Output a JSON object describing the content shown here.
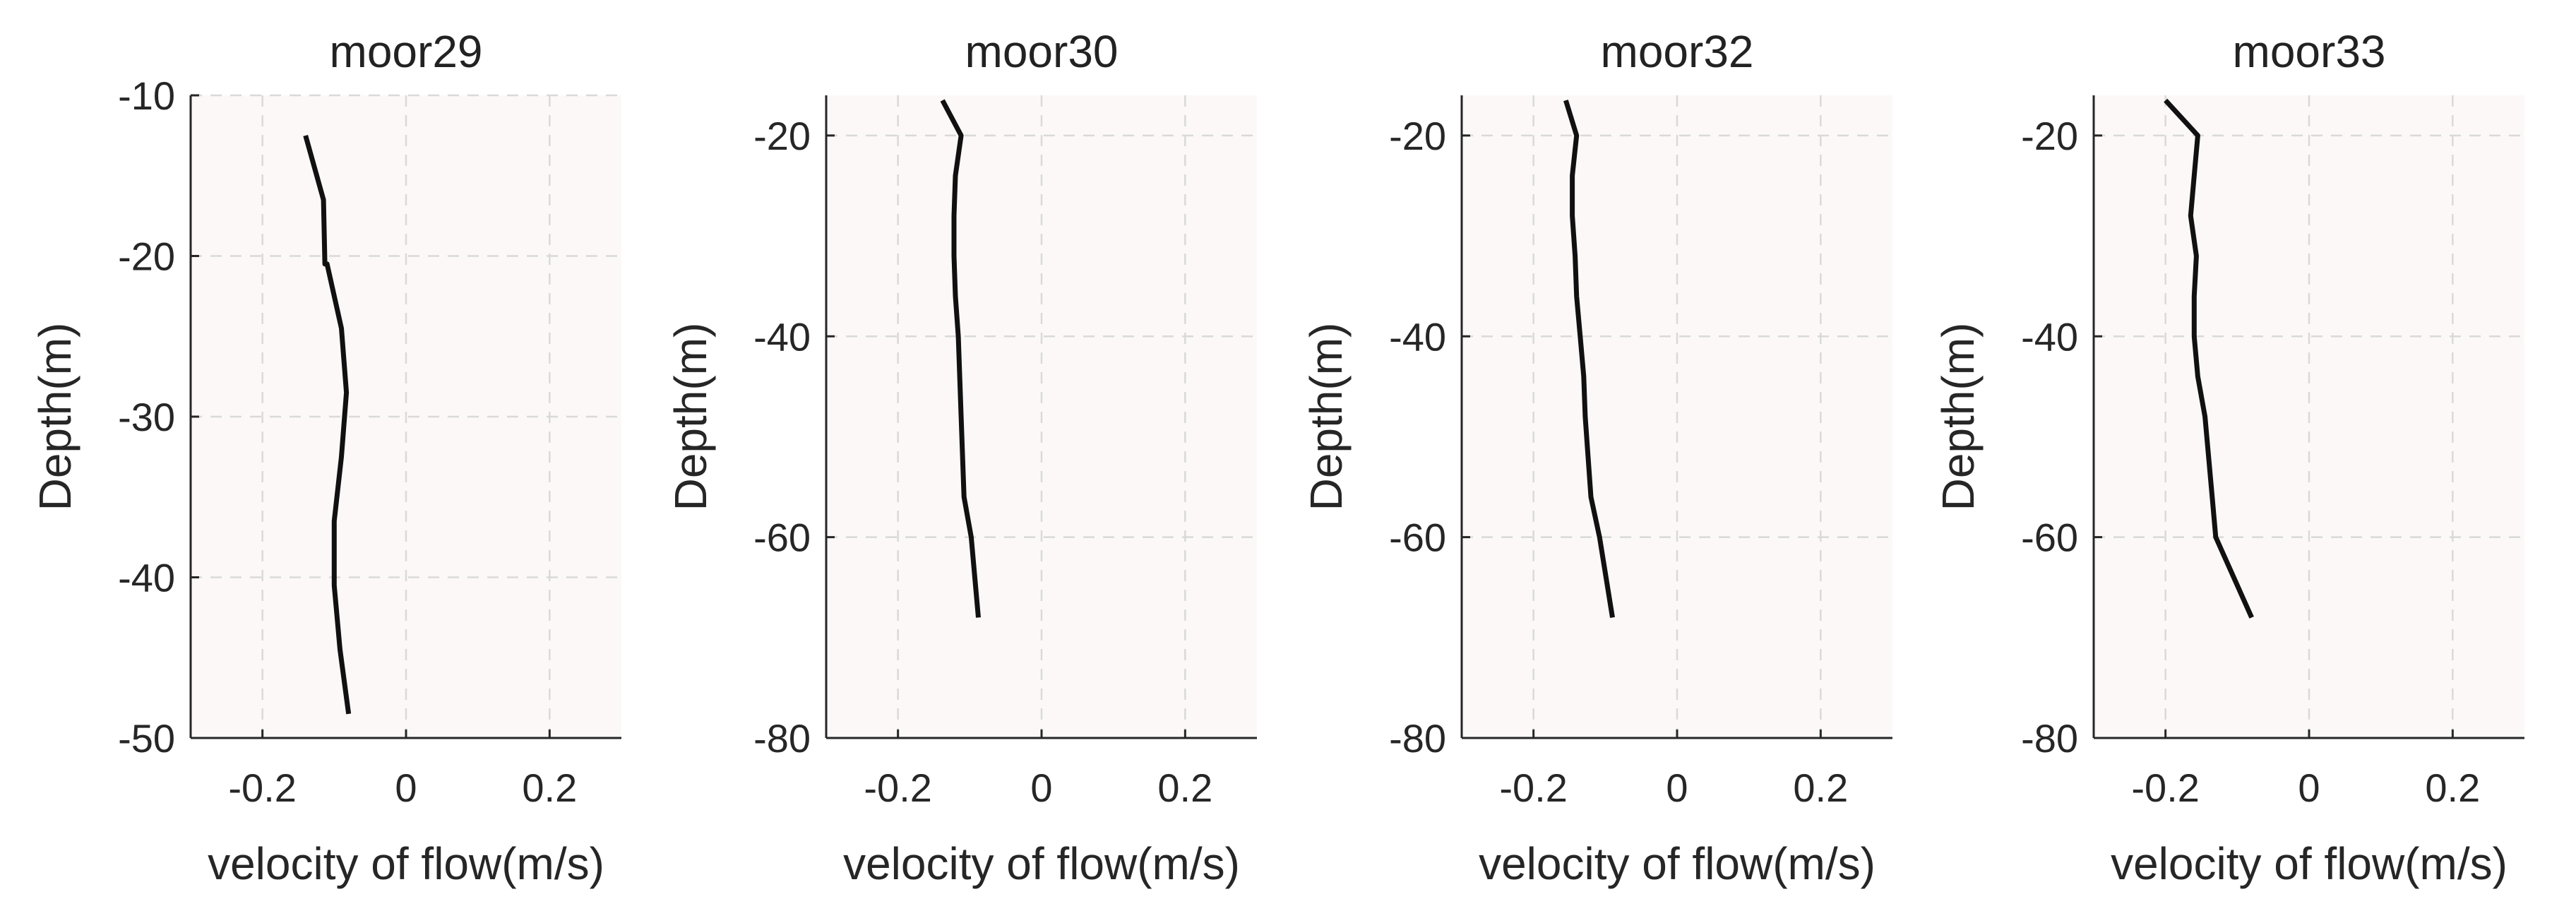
{
  "figure": {
    "xlabel": "velocity of flow(m/s)",
    "ylabel": "Depth(m)",
    "plot_background": "#fcf8f8",
    "grid_color": "#d9d9d9",
    "line_color": "#111111"
  },
  "chart_data": [
    {
      "type": "line",
      "title": "moor29",
      "xlabel": "velocity of flow(m/s)",
      "ylabel": "Depth(m)",
      "xlim": [
        -0.3,
        0.3
      ],
      "ylim": [
        -50,
        -10
      ],
      "xticks": [
        -0.2,
        0,
        0.2
      ],
      "yticks": [
        -50,
        -40,
        -30,
        -20,
        -10
      ],
      "xtick_labels": [
        "-0.2",
        "0",
        "0.2"
      ],
      "ytick_labels": [
        "-50",
        "-40",
        "-30",
        "-20",
        "-10"
      ],
      "grid": true,
      "series": [
        {
          "name": "moor29",
          "x": [
            -0.14,
            -0.115,
            -0.113,
            -0.11,
            -0.09,
            -0.083,
            -0.09,
            -0.1,
            -0.1,
            -0.1,
            -0.092,
            -0.08
          ],
          "y": [
            -12.5,
            -16.5,
            -20.5,
            -20.5,
            -24.5,
            -28.5,
            -32.5,
            -36.5,
            -36.5,
            -40.5,
            -44.5,
            -48.5
          ]
        }
      ]
    },
    {
      "type": "line",
      "title": "moor30",
      "xlabel": "velocity of flow(m/s)",
      "ylabel": "Depth(m)",
      "xlim": [
        -0.3,
        0.3
      ],
      "ylim": [
        -80,
        -16
      ],
      "xticks": [
        -0.2,
        0,
        0.2
      ],
      "yticks": [
        -80,
        -60,
        -40,
        -20
      ],
      "xtick_labels": [
        "-0.2",
        "0",
        "0.2"
      ],
      "ytick_labels": [
        "-80",
        "-60",
        "-40",
        "-20"
      ],
      "grid": true,
      "series": [
        {
          "name": "moor30",
          "x": [
            -0.138,
            -0.112,
            -0.12,
            -0.122,
            -0.122,
            -0.12,
            -0.116,
            -0.114,
            -0.112,
            -0.108,
            -0.098,
            -0.088
          ],
          "y": [
            -16.5,
            -20,
            -24,
            -28,
            -32,
            -36,
            -40,
            -44,
            -48,
            -56,
            -60,
            -68
          ]
        }
      ]
    },
    {
      "type": "line",
      "title": "moor32",
      "xlabel": "velocity of flow(m/s)",
      "ylabel": "Depth(m)",
      "xlim": [
        -0.3,
        0.3
      ],
      "ylim": [
        -80,
        -16
      ],
      "xticks": [
        -0.2,
        0,
        0.2
      ],
      "yticks": [
        -80,
        -60,
        -40,
        -20
      ],
      "xtick_labels": [
        "-0.2",
        "0",
        "0.2"
      ],
      "ytick_labels": [
        "-80",
        "-60",
        "-40",
        "-20"
      ],
      "grid": true,
      "series": [
        {
          "name": "moor32",
          "x": [
            -0.155,
            -0.14,
            -0.146,
            -0.146,
            -0.142,
            -0.14,
            -0.135,
            -0.13,
            -0.128,
            -0.12,
            -0.108,
            -0.09
          ],
          "y": [
            -16.5,
            -20,
            -24,
            -28,
            -32,
            -36,
            -40,
            -44,
            -48,
            -56,
            -60,
            -68
          ]
        }
      ]
    },
    {
      "type": "line",
      "title": "moor33",
      "xlabel": "velocity of flow(m/s)",
      "ylabel": "Depth(m)",
      "xlim": [
        -0.3,
        0.3
      ],
      "ylim": [
        -80,
        -16
      ],
      "xticks": [
        -0.2,
        0,
        0.2
      ],
      "yticks": [
        -80,
        -60,
        -40,
        -20
      ],
      "xtick_labels": [
        "-0.2",
        "0",
        "0.2"
      ],
      "ytick_labels": [
        "-80",
        "-60",
        "-40",
        "-20"
      ],
      "grid": true,
      "series": [
        {
          "name": "moor33",
          "x": [
            -0.2,
            -0.155,
            -0.16,
            -0.165,
            -0.157,
            -0.16,
            -0.16,
            -0.155,
            -0.145,
            -0.135,
            -0.13,
            -0.08
          ],
          "y": [
            -16.5,
            -20,
            -24,
            -28,
            -32,
            -36,
            -40,
            -44,
            -48,
            -56,
            -60,
            -68
          ]
        }
      ]
    }
  ]
}
